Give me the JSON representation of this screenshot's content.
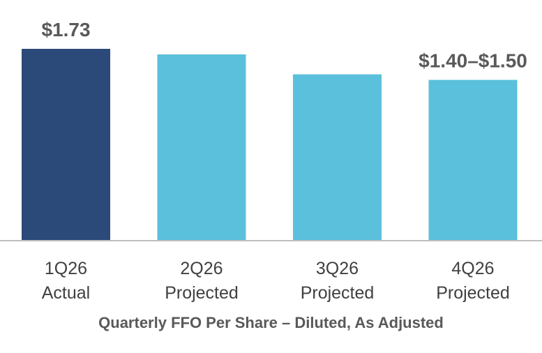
{
  "chart_data": {
    "type": "bar",
    "categories": [
      {
        "quarter": "1Q26",
        "status": "Actual"
      },
      {
        "quarter": "2Q26",
        "status": "Projected"
      },
      {
        "quarter": "3Q26",
        "status": "Projected"
      },
      {
        "quarter": "4Q26",
        "status": "Projected"
      }
    ],
    "values": [
      1.73,
      1.68,
      1.5,
      1.45
    ],
    "colors": [
      "#2b4a7a",
      "#5bc0dc",
      "#5bc0dc",
      "#5bc0dc"
    ],
    "data_labels": [
      "$1.73",
      "",
      "",
      "$1.40–$1.50"
    ],
    "title": "",
    "xlabel": "Quarterly FFO Per Share – Diluted, As Adjusted",
    "ylabel": "",
    "ylim": [
      0,
      1.73
    ],
    "grid": false,
    "legend": "none",
    "axis_color": "#bfbfbf"
  }
}
